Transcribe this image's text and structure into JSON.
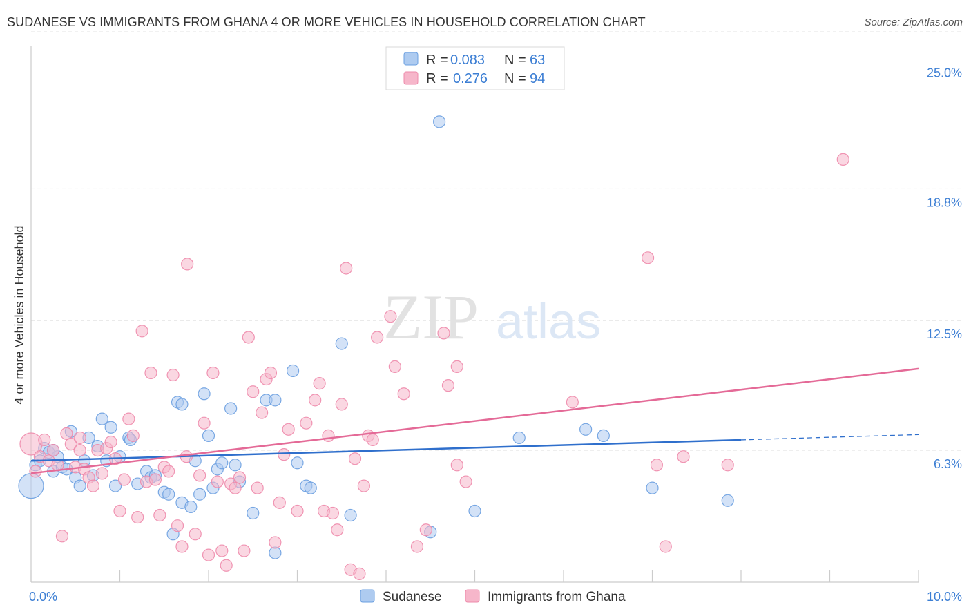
{
  "title": "SUDANESE VS IMMIGRANTS FROM GHANA 4 OR MORE VEHICLES IN HOUSEHOLD CORRELATION CHART",
  "source": "Source: ZipAtlas.com",
  "watermark": {
    "zip": "ZIP",
    "atlas": "atlas"
  },
  "legend": {
    "rows": [
      {
        "r_label": "R =",
        "r_value": "0.083",
        "n_label": "N =",
        "n_value": "63",
        "color": "#aecbf0"
      },
      {
        "r_label": "R =",
        "r_value": "0.276",
        "n_label": "N =",
        "n_value": "94",
        "color": "#f6b6ca"
      }
    ]
  },
  "bottom_legend": [
    {
      "label": "Sudanese",
      "color": "#aecbf0"
    },
    {
      "label": "Immigrants from Ghana",
      "color": "#f6b6ca"
    }
  ],
  "chart_data": {
    "type": "scatter",
    "title": "SUDANESE VS IMMIGRANTS FROM GHANA 4 OR MORE VEHICLES IN HOUSEHOLD CORRELATION CHART",
    "xlabel": "",
    "ylabel": "4 or more Vehicles in Household",
    "xlim": [
      0,
      10
    ],
    "ylim": [
      0,
      26.5
    ],
    "x_tick_labels": [
      "0.0%",
      "10.0%"
    ],
    "y_ticks": [
      6.3,
      12.5,
      18.8,
      25.0
    ],
    "y_tick_labels": [
      "6.3%",
      "12.5%",
      "18.8%",
      "25.0%"
    ],
    "grid": true,
    "legend_position": "top-center",
    "series": [
      {
        "name": "Sudanese",
        "color": "#6a9fe0",
        "fill": "#aecbf0",
        "trend": {
          "x0": 0,
          "y0": 5.8,
          "x1": 8.0,
          "y1": 6.8,
          "dash_x1": 10.0,
          "dash_y1": 7.05,
          "color": "#2f6fcc"
        },
        "points": [
          [
            0.0,
            4.6
          ],
          [
            0.1,
            5.8
          ],
          [
            0.15,
            6.4
          ],
          [
            0.2,
            6.2
          ],
          [
            0.25,
            5.3
          ],
          [
            0.3,
            6.0
          ],
          [
            0.35,
            5.5
          ],
          [
            0.45,
            7.2
          ],
          [
            0.5,
            5.0
          ],
          [
            0.55,
            4.6
          ],
          [
            0.6,
            5.8
          ],
          [
            0.65,
            6.9
          ],
          [
            0.7,
            5.1
          ],
          [
            0.75,
            6.5
          ],
          [
            0.8,
            7.8
          ],
          [
            0.85,
            5.8
          ],
          [
            0.9,
            7.4
          ],
          [
            0.95,
            4.6
          ],
          [
            1.0,
            6.0
          ],
          [
            1.1,
            6.9
          ],
          [
            1.12,
            6.8
          ],
          [
            1.2,
            4.7
          ],
          [
            1.3,
            5.3
          ],
          [
            1.35,
            5.0
          ],
          [
            1.4,
            5.1
          ],
          [
            1.5,
            4.3
          ],
          [
            1.55,
            4.2
          ],
          [
            1.6,
            2.3
          ],
          [
            1.65,
            8.6
          ],
          [
            1.7,
            8.5
          ],
          [
            1.7,
            3.8
          ],
          [
            1.8,
            3.6
          ],
          [
            1.85,
            5.8
          ],
          [
            1.9,
            4.2
          ],
          [
            1.95,
            9.0
          ],
          [
            2.0,
            7.0
          ],
          [
            2.05,
            4.5
          ],
          [
            2.1,
            5.4
          ],
          [
            2.15,
            5.7
          ],
          [
            2.25,
            8.3
          ],
          [
            2.3,
            5.6
          ],
          [
            2.35,
            4.8
          ],
          [
            2.5,
            3.3
          ],
          [
            2.65,
            8.7
          ],
          [
            2.75,
            8.7
          ],
          [
            2.75,
            1.4
          ],
          [
            2.95,
            10.1
          ],
          [
            3.0,
            5.7
          ],
          [
            3.1,
            4.6
          ],
          [
            3.15,
            4.5
          ],
          [
            3.5,
            11.4
          ],
          [
            3.6,
            3.2
          ],
          [
            4.5,
            2.4
          ],
          [
            4.6,
            22.0
          ],
          [
            5.0,
            3.4
          ],
          [
            5.5,
            6.9
          ],
          [
            6.25,
            7.3
          ],
          [
            6.45,
            7.0
          ],
          [
            7.0,
            4.5
          ],
          [
            7.85,
            3.9
          ],
          [
            0.05,
            5.6
          ],
          [
            0.25,
            6.3
          ],
          [
            0.4,
            5.4
          ]
        ]
      },
      {
        "name": "Immigrants from Ghana",
        "color": "#ee8aab",
        "fill": "#f6b6ca",
        "trend": {
          "x0": 0,
          "y0": 5.2,
          "x1": 10.0,
          "y1": 10.2,
          "color": "#e46a97"
        },
        "points": [
          [
            0.0,
            6.6
          ],
          [
            0.05,
            5.3
          ],
          [
            0.1,
            6.0
          ],
          [
            0.15,
            6.8
          ],
          [
            0.2,
            5.8
          ],
          [
            0.25,
            6.3
          ],
          [
            0.3,
            5.6
          ],
          [
            0.35,
            2.2
          ],
          [
            0.4,
            7.1
          ],
          [
            0.45,
            6.6
          ],
          [
            0.5,
            5.5
          ],
          [
            0.55,
            6.9
          ],
          [
            0.6,
            5.4
          ],
          [
            0.65,
            5.0
          ],
          [
            0.7,
            4.6
          ],
          [
            0.75,
            6.3
          ],
          [
            0.8,
            5.2
          ],
          [
            0.85,
            6.4
          ],
          [
            0.9,
            6.7
          ],
          [
            0.95,
            5.9
          ],
          [
            1.0,
            3.4
          ],
          [
            1.05,
            4.9
          ],
          [
            1.1,
            7.8
          ],
          [
            1.15,
            7.0
          ],
          [
            1.2,
            3.1
          ],
          [
            1.25,
            12.0
          ],
          [
            1.3,
            4.8
          ],
          [
            1.35,
            10.0
          ],
          [
            1.4,
            4.9
          ],
          [
            1.45,
            3.2
          ],
          [
            1.5,
            5.5
          ],
          [
            1.55,
            5.3
          ],
          [
            1.6,
            9.9
          ],
          [
            1.65,
            2.7
          ],
          [
            1.7,
            1.7
          ],
          [
            1.75,
            6.0
          ],
          [
            1.76,
            15.2
          ],
          [
            1.85,
            2.3
          ],
          [
            1.9,
            5.1
          ],
          [
            1.95,
            7.6
          ],
          [
            2.0,
            1.3
          ],
          [
            2.05,
            10.0
          ],
          [
            2.1,
            4.8
          ],
          [
            2.15,
            1.5
          ],
          [
            2.2,
            0.8
          ],
          [
            2.25,
            4.7
          ],
          [
            2.3,
            4.5
          ],
          [
            2.35,
            5.0
          ],
          [
            2.4,
            1.5
          ],
          [
            2.45,
            11.7
          ],
          [
            2.5,
            9.1
          ],
          [
            2.55,
            4.5
          ],
          [
            2.6,
            8.1
          ],
          [
            2.65,
            9.7
          ],
          [
            2.7,
            10.0
          ],
          [
            2.75,
            1.9
          ],
          [
            2.8,
            3.8
          ],
          [
            2.85,
            6.1
          ],
          [
            2.9,
            7.3
          ],
          [
            3.0,
            3.4
          ],
          [
            3.1,
            7.6
          ],
          [
            3.2,
            8.7
          ],
          [
            3.25,
            9.5
          ],
          [
            3.3,
            3.4
          ],
          [
            3.35,
            7.0
          ],
          [
            3.4,
            3.3
          ],
          [
            3.45,
            2.5
          ],
          [
            3.5,
            8.5
          ],
          [
            3.55,
            15.0
          ],
          [
            3.6,
            0.6
          ],
          [
            3.65,
            5.9
          ],
          [
            3.7,
            0.4
          ],
          [
            3.75,
            4.6
          ],
          [
            3.8,
            7.0
          ],
          [
            3.85,
            6.8
          ],
          [
            3.9,
            11.7
          ],
          [
            4.05,
            12.7
          ],
          [
            4.1,
            10.3
          ],
          [
            4.2,
            9.0
          ],
          [
            4.35,
            1.7
          ],
          [
            4.45,
            2.5
          ],
          [
            4.65,
            11.9
          ],
          [
            4.7,
            9.4
          ],
          [
            4.8,
            10.3
          ],
          [
            4.8,
            5.6
          ],
          [
            4.9,
            4.8
          ],
          [
            6.1,
            8.6
          ],
          [
            6.95,
            15.5
          ],
          [
            7.05,
            5.6
          ],
          [
            7.15,
            1.7
          ],
          [
            7.35,
            6.0
          ],
          [
            7.85,
            5.6
          ],
          [
            9.15,
            20.2
          ],
          [
            0.55,
            6.3
          ]
        ]
      }
    ]
  }
}
